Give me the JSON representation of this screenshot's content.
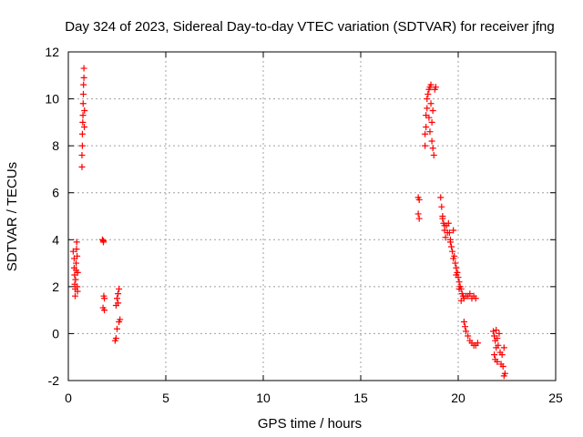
{
  "chart_data": {
    "type": "scatter",
    "title": "Day 324 of 2023, Sidereal Day-to-day VTEC variation (SDTVAR) for receiver jfng",
    "xlabel": "GPS time / hours",
    "ylabel": "SDTVAR / TECUs",
    "xlim": [
      0,
      25
    ],
    "ylim": [
      -2,
      12
    ],
    "xticks": [
      "0",
      "5",
      "10",
      "15",
      "20",
      "25"
    ],
    "yticks": [
      "-2",
      "0",
      "2",
      "4",
      "6",
      "8",
      "10",
      "12"
    ],
    "grid": true,
    "marker": "plus",
    "colors": {
      "series": "#ff0000",
      "grid": "#a0a0a0",
      "axes": "#000000"
    },
    "series": [
      {
        "name": "SDTVAR",
        "points": [
          [
            0.25,
            3.5
          ],
          [
            0.3,
            3.2
          ],
          [
            0.3,
            2.8
          ],
          [
            0.32,
            2.5
          ],
          [
            0.33,
            2.1
          ],
          [
            0.35,
            1.9
          ],
          [
            0.35,
            1.6
          ],
          [
            0.37,
            2.3
          ],
          [
            0.4,
            2.7
          ],
          [
            0.4,
            3.0
          ],
          [
            0.42,
            3.6
          ],
          [
            0.43,
            3.9
          ],
          [
            0.45,
            3.3
          ],
          [
            0.45,
            2.0
          ],
          [
            0.47,
            1.8
          ],
          [
            0.48,
            2.6
          ],
          [
            0.7,
            7.1
          ],
          [
            0.7,
            7.6
          ],
          [
            0.72,
            8.0
          ],
          [
            0.72,
            8.5
          ],
          [
            0.74,
            9.0
          ],
          [
            0.75,
            9.3
          ],
          [
            0.76,
            9.8
          ],
          [
            0.77,
            10.2
          ],
          [
            0.78,
            10.6
          ],
          [
            0.8,
            10.9
          ],
          [
            0.8,
            11.3
          ],
          [
            0.82,
            8.8
          ],
          [
            0.83,
            9.5
          ],
          [
            1.75,
            4.0
          ],
          [
            1.8,
            3.9
          ],
          [
            1.82,
            1.6
          ],
          [
            1.85,
            1.5
          ],
          [
            1.78,
            1.1
          ],
          [
            1.85,
            1.0
          ],
          [
            1.8,
            3.95
          ],
          [
            2.4,
            -0.3
          ],
          [
            2.45,
            -0.2
          ],
          [
            2.5,
            0.2
          ],
          [
            2.45,
            1.2
          ],
          [
            2.5,
            1.5
          ],
          [
            2.55,
            1.7
          ],
          [
            2.6,
            1.9
          ],
          [
            2.6,
            0.5
          ],
          [
            2.65,
            0.6
          ],
          [
            2.55,
            1.3
          ],
          [
            17.95,
            5.8
          ],
          [
            18.0,
            5.7
          ],
          [
            17.95,
            5.1
          ],
          [
            18.0,
            4.9
          ],
          [
            18.3,
            8.0
          ],
          [
            18.3,
            8.5
          ],
          [
            18.35,
            8.8
          ],
          [
            18.35,
            9.3
          ],
          [
            18.4,
            9.6
          ],
          [
            18.4,
            10.0
          ],
          [
            18.45,
            10.2
          ],
          [
            18.5,
            10.4
          ],
          [
            18.55,
            10.5
          ],
          [
            18.6,
            10.6
          ],
          [
            18.6,
            9.8
          ],
          [
            18.65,
            9.0
          ],
          [
            18.65,
            8.2
          ],
          [
            18.7,
            7.9
          ],
          [
            18.75,
            7.6
          ],
          [
            18.8,
            10.4
          ],
          [
            18.85,
            10.5
          ],
          [
            18.5,
            9.2
          ],
          [
            18.55,
            8.6
          ],
          [
            18.7,
            9.5
          ],
          [
            19.1,
            5.8
          ],
          [
            19.15,
            5.4
          ],
          [
            19.2,
            5.0
          ],
          [
            19.25,
            4.7
          ],
          [
            19.3,
            4.4
          ],
          [
            19.35,
            4.1
          ],
          [
            19.4,
            4.6
          ],
          [
            19.5,
            4.7
          ],
          [
            19.55,
            4.3
          ],
          [
            19.6,
            4.0
          ],
          [
            19.65,
            3.7
          ],
          [
            19.7,
            3.5
          ],
          [
            19.75,
            4.4
          ],
          [
            19.8,
            3.3
          ],
          [
            19.85,
            3.0
          ],
          [
            19.9,
            2.8
          ],
          [
            19.95,
            2.6
          ],
          [
            20.0,
            2.4
          ],
          [
            20.05,
            2.2
          ],
          [
            20.1,
            2.0
          ],
          [
            20.15,
            1.9
          ],
          [
            20.2,
            1.7
          ],
          [
            20.25,
            1.6
          ],
          [
            20.3,
            1.5
          ],
          [
            20.4,
            1.6
          ],
          [
            20.5,
            1.6
          ],
          [
            20.6,
            1.7
          ],
          [
            20.7,
            1.5
          ],
          [
            20.8,
            1.6
          ],
          [
            20.9,
            1.5
          ],
          [
            19.2,
            4.9
          ],
          [
            19.3,
            4.6
          ],
          [
            19.45,
            4.3
          ],
          [
            19.6,
            3.9
          ],
          [
            19.75,
            3.2
          ],
          [
            19.9,
            2.5
          ],
          [
            20.05,
            1.9
          ],
          [
            20.15,
            1.4
          ],
          [
            20.3,
            0.5
          ],
          [
            20.35,
            0.3
          ],
          [
            20.4,
            0.1
          ],
          [
            20.5,
            -0.1
          ],
          [
            20.6,
            -0.3
          ],
          [
            20.7,
            -0.4
          ],
          [
            20.8,
            -0.5
          ],
          [
            20.9,
            -0.5
          ],
          [
            21.0,
            -0.4
          ],
          [
            21.8,
            0.1
          ],
          [
            21.85,
            -0.1
          ],
          [
            21.9,
            -0.3
          ],
          [
            21.95,
            -0.6
          ],
          [
            21.85,
            -0.9
          ],
          [
            21.9,
            -1.1
          ],
          [
            22.0,
            -1.2
          ],
          [
            22.05,
            -0.5
          ],
          [
            22.1,
            0.0
          ],
          [
            22.15,
            -0.8
          ],
          [
            22.2,
            -1.3
          ],
          [
            22.25,
            -0.9
          ],
          [
            22.3,
            -1.4
          ],
          [
            22.35,
            -0.6
          ],
          [
            22.35,
            -1.8
          ],
          [
            22.4,
            -1.7
          ],
          [
            22.0,
            -0.2
          ],
          [
            21.95,
            0.15
          ]
        ]
      }
    ]
  }
}
